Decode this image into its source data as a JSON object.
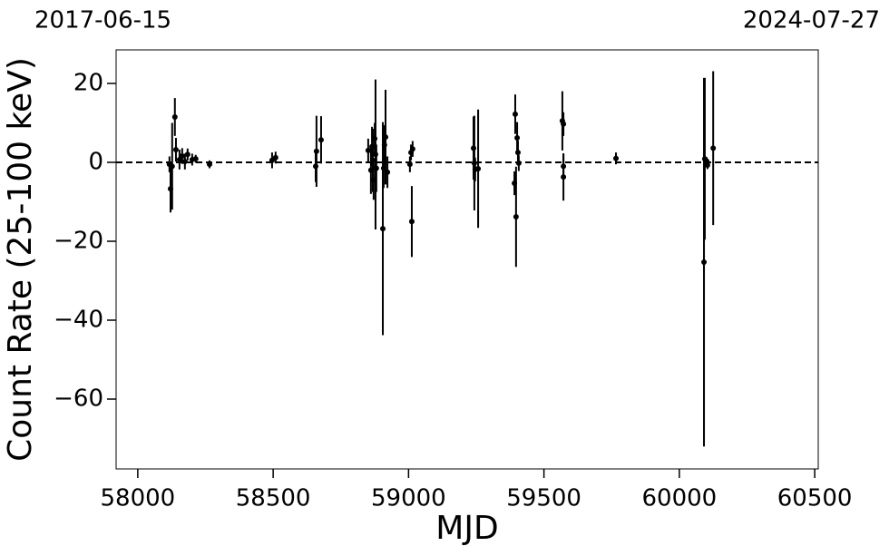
{
  "chart_data": {
    "type": "errorbar-scatter",
    "xlabel": "MJD",
    "ylabel": "Count Rate (25-100 keV)",
    "date_labels": [
      "2017-06-15",
      "2024-07-27"
    ],
    "xlim": [
      57920,
      60513
    ],
    "ylim": [
      -77.7,
      28.5
    ],
    "xticks": [
      58000,
      58500,
      59000,
      59500,
      60000,
      60500
    ],
    "yticks": [
      {
        "value": -60,
        "label": "−60"
      },
      {
        "value": -40,
        "label": "−40"
      },
      {
        "value": -20,
        "label": "−20"
      },
      0,
      20
    ],
    "hline": 0,
    "color": "#000000",
    "x": [
      58117,
      58121,
      58127,
      58137,
      58141,
      58154,
      58164,
      58174,
      58184,
      58201,
      58214,
      58265,
      58496,
      58509,
      58657,
      58660,
      58677,
      58851,
      58861,
      58865,
      58868,
      58871,
      58875,
      58878,
      58881,
      58905,
      58908,
      58911,
      58915,
      58922,
      59005,
      59009,
      59012,
      59015,
      59240,
      59243,
      59246,
      59257,
      59391,
      59394,
      59397,
      59401,
      59404,
      59407,
      59568,
      59572,
      59572,
      59572,
      59766,
      60091,
      60094,
      60101,
      60104,
      60125
    ],
    "series": [
      {
        "values": [
          -0.5,
          -6.7,
          -1,
          11.5,
          3.2,
          0.7,
          1.6,
          0.2,
          2,
          0.7,
          0.9,
          -0.5,
          0.5,
          1.2,
          -1,
          2.8,
          5.7,
          3,
          -2,
          4,
          0.5,
          -4.5,
          6,
          2,
          -1.5,
          -16.8,
          -1.5,
          4.4,
          6.4,
          -2.5,
          -0.5,
          2.5,
          -15,
          3.4,
          3.6,
          -0.2,
          -1.8,
          -1.6,
          -5.3,
          12.2,
          -13.8,
          6.2,
          2.5,
          -0.2,
          10.5,
          9.7,
          -1,
          -3.7,
          1,
          -25.3,
          0.9,
          0.3,
          -0.7,
          3.6
        ],
        "errors": [
          2,
          6,
          11,
          4.8,
          3,
          2.5,
          2,
          2,
          1.5,
          1.5,
          1,
          1,
          2,
          1.5,
          4,
          9,
          6,
          3,
          6,
          5,
          8,
          5,
          4,
          19,
          6,
          27,
          5,
          5,
          12,
          4,
          2,
          2,
          9,
          2,
          8,
          12,
          3,
          15,
          3,
          5,
          12.7,
          4,
          3,
          2,
          7.5,
          3,
          3,
          6,
          1.5,
          46.7,
          20.5,
          1,
          1,
          19.5
        ]
      }
    ]
  }
}
